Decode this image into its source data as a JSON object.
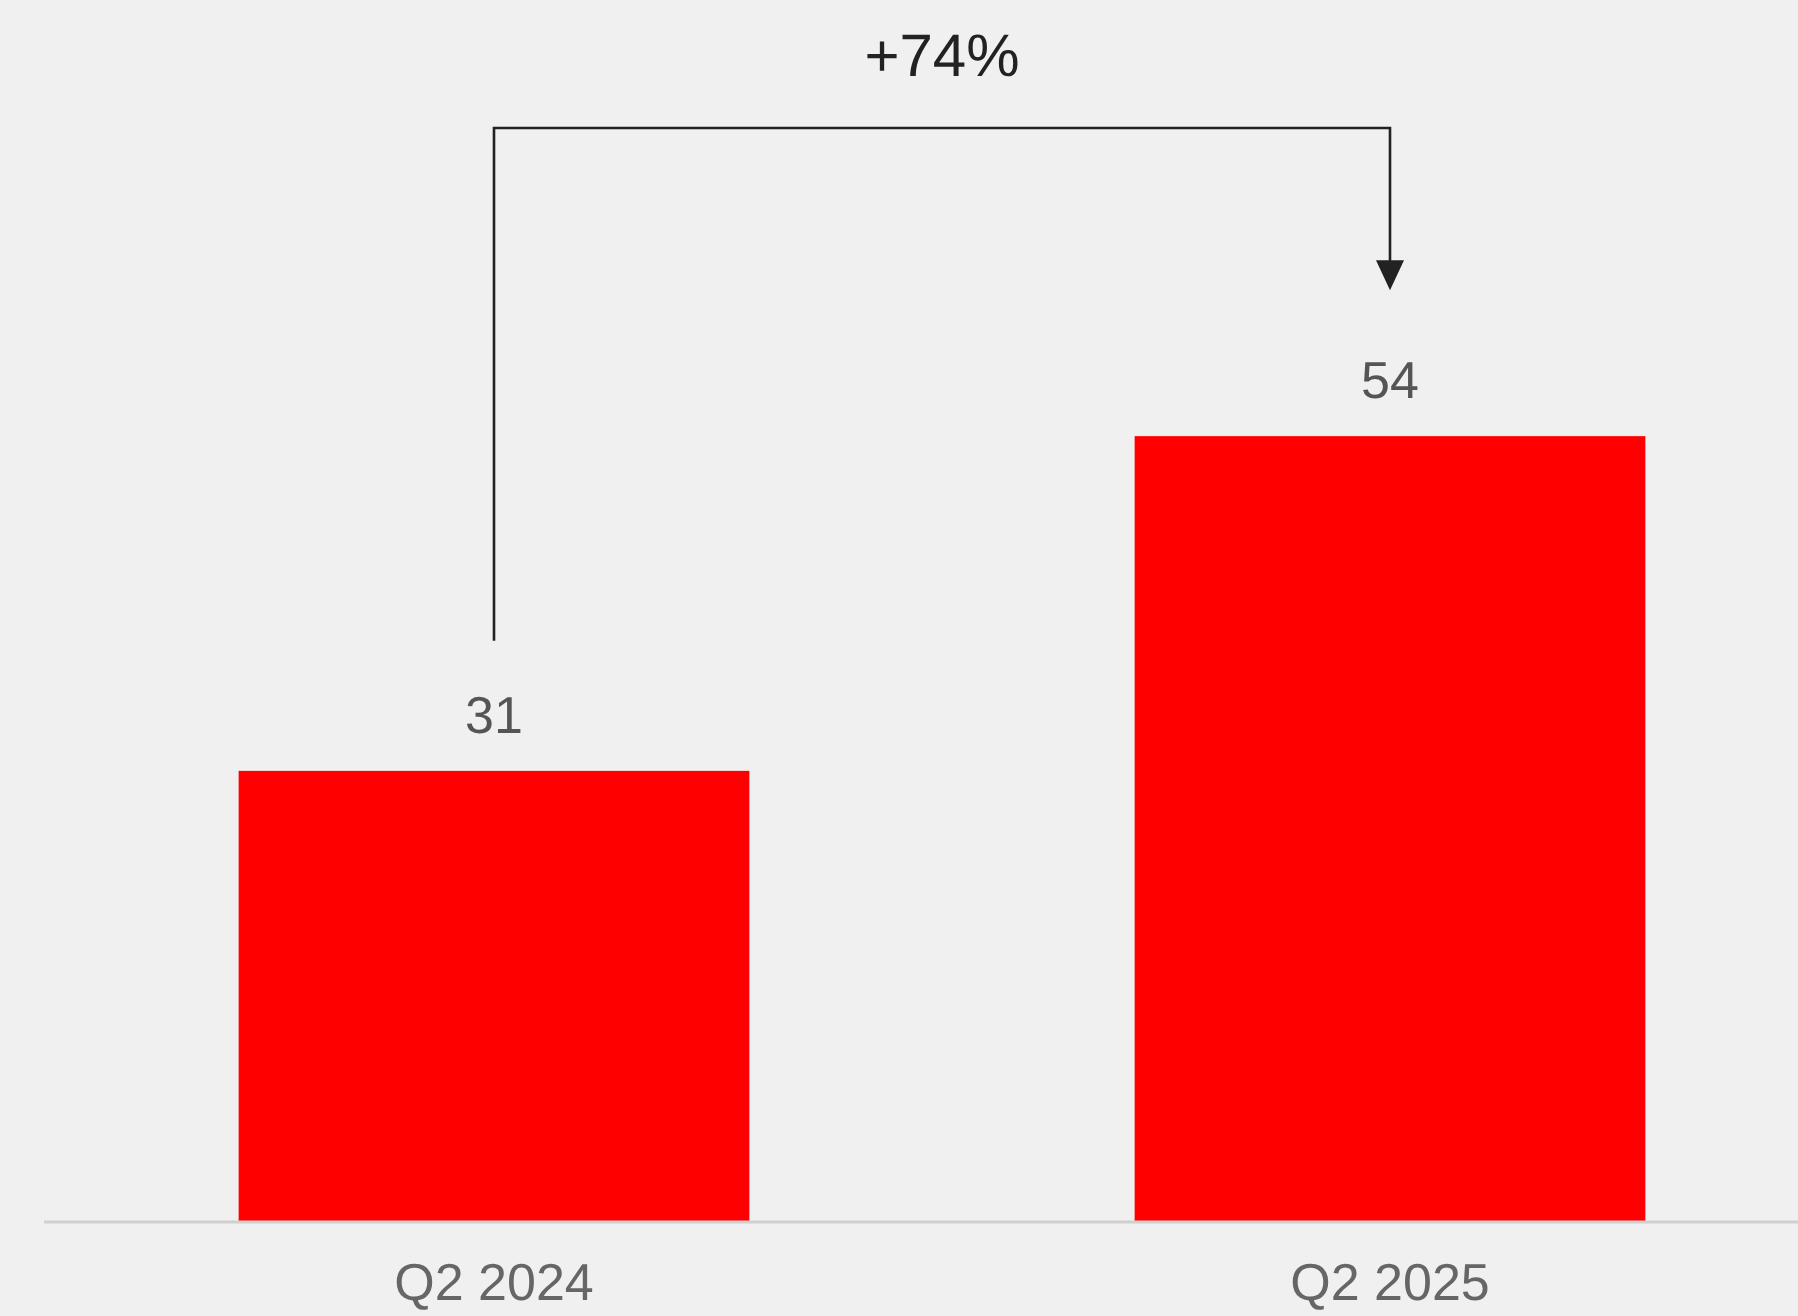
{
  "chart_data": {
    "type": "bar",
    "categories": [
      "Q2 2024",
      "Q2 2025"
    ],
    "values": [
      31,
      54
    ],
    "color": "#ff0000",
    "data_labels": true,
    "annotations": [
      "+74%"
    ]
  }
}
